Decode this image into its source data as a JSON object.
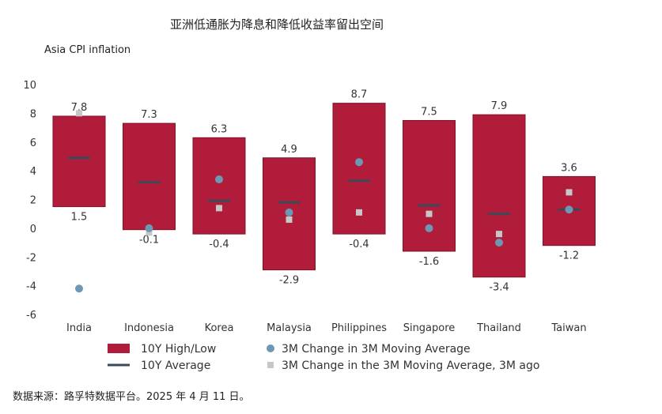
{
  "chart_data": {
    "type": "bar",
    "title": "亚洲低通胀为降息和降低收益率留出空间",
    "ylabel": "Asia CPI inflation",
    "ylim": [
      -6,
      10
    ],
    "yticks": [
      10,
      8,
      6,
      4,
      2,
      0,
      -2,
      -4,
      -6
    ],
    "grid": false,
    "legend_placement": "bottom",
    "categories": [
      "India",
      "Indonesia",
      "Korea",
      "Malaysia",
      "Philippines",
      "Singapore",
      "Thailand",
      "Taiwan"
    ],
    "series": [
      {
        "name": "10Y High/Low",
        "kind": "range_bar",
        "color": "#b01c3a",
        "high": [
          7.8,
          7.3,
          6.3,
          4.9,
          8.7,
          7.5,
          7.9,
          3.6
        ],
        "low": [
          1.5,
          -0.1,
          -0.4,
          -2.9,
          -0.4,
          -1.6,
          -3.4,
          -1.2
        ],
        "high_labels": [
          "7.8",
          "7.3",
          "6.3",
          "4.9",
          "8.7",
          "7.5",
          "7.9",
          "3.6"
        ],
        "low_labels": [
          "1.5",
          "-0.1",
          "-0.4",
          "-2.9",
          "-0.4",
          "-1.6",
          "-3.4",
          "-1.2"
        ]
      },
      {
        "name": "10Y Average",
        "kind": "tick",
        "color": "#3c4a57",
        "values": [
          4.9,
          3.2,
          1.9,
          1.8,
          3.3,
          1.6,
          1.0,
          1.3
        ]
      },
      {
        "name": "3M Change in 3M Moving Average",
        "kind": "circle",
        "color": "#6d98b3",
        "values": [
          -4.2,
          0.0,
          3.4,
          1.1,
          4.6,
          0.0,
          -1.0,
          1.3
        ]
      },
      {
        "name": "3M Change in the 3M Moving Average, 3M ago",
        "kind": "square",
        "color": "#c7c7c7",
        "values": [
          8.0,
          -0.3,
          1.4,
          0.6,
          1.1,
          1.0,
          -0.4,
          2.5
        ]
      }
    ]
  },
  "source_note": "数据来源：路孚特数据平台。2025 年 4 月 11 日。"
}
